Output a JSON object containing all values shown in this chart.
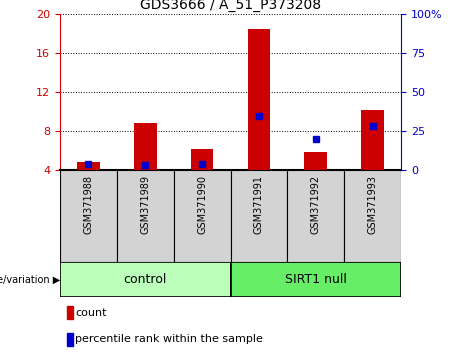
{
  "title": "GDS3666 / A_51_P373208",
  "categories": [
    "GSM371988",
    "GSM371989",
    "GSM371990",
    "GSM371991",
    "GSM371992",
    "GSM371993"
  ],
  "red_bar_values": [
    4.8,
    8.8,
    6.2,
    18.5,
    5.8,
    10.2
  ],
  "blue_dot_values_left": [
    4.65,
    4.55,
    4.6,
    9.5,
    7.2,
    8.55
  ],
  "bar_bottom": 4.0,
  "ylim_left": [
    4,
    20
  ],
  "ylim_right": [
    0,
    100
  ],
  "yticks_left": [
    4,
    8,
    12,
    16,
    20
  ],
  "yticks_right": [
    0,
    25,
    50,
    75,
    100
  ],
  "ytick_labels_right": [
    "0",
    "25",
    "50",
    "75",
    "100%"
  ],
  "red_color": "#cc0000",
  "blue_color": "#0000cc",
  "group_labels": [
    "control",
    "SIRT1 null"
  ],
  "legend_items": [
    "count",
    "percentile rank within the sample"
  ],
  "bar_width": 0.4,
  "blue_marker_size": 5,
  "xlabel_group": "genotype/variation",
  "plot_bg_color": "#ffffff",
  "xticklabels_bg": "#d3d3d3",
  "ctrl_color": "#bbffbb",
  "sirt_color": "#66ee66"
}
